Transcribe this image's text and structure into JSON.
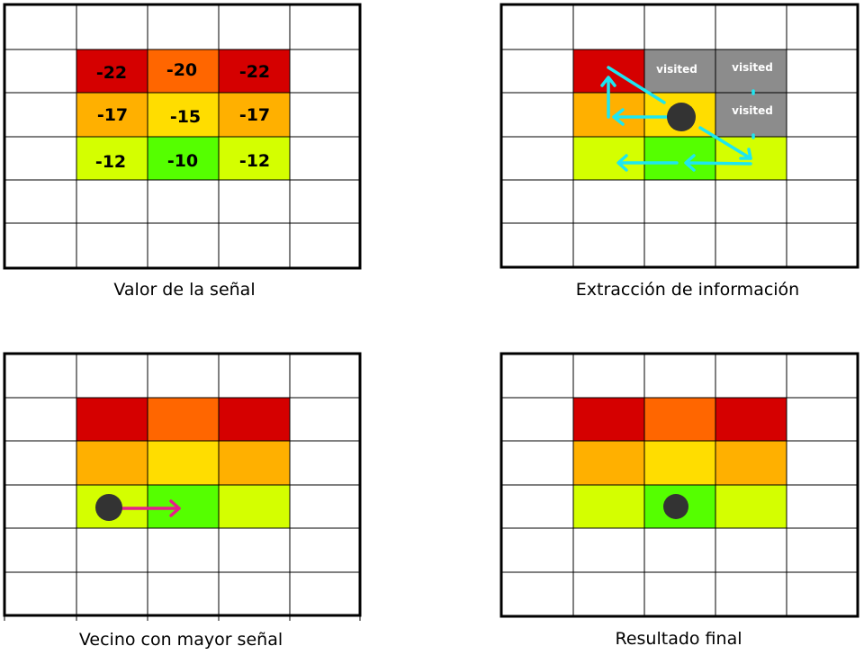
{
  "colors": {
    "red": "#d50000",
    "orange": "#ff6600",
    "amber": "#ffb000",
    "yellow": "#ffdd00",
    "lime": "#d4ff00",
    "green": "#55ff00",
    "gray": "#8c8c8c",
    "cyan": "#1ee6f0",
    "magenta": "#e61e8c",
    "dot": "#333333"
  },
  "panels": {
    "signal": {
      "caption": "Valor de la señal",
      "values": [
        [
          "-22",
          "-20",
          "-22"
        ],
        [
          "-17",
          "-15",
          "-17"
        ],
        [
          "-12",
          "-10",
          "-12"
        ]
      ]
    },
    "extraction": {
      "caption": "Extracción de información",
      "visited_labels": [
        "visited",
        "visited",
        "visited"
      ]
    },
    "neighbor": {
      "caption": "Vecino con mayor señal"
    },
    "result": {
      "caption": "Resultado final"
    }
  }
}
